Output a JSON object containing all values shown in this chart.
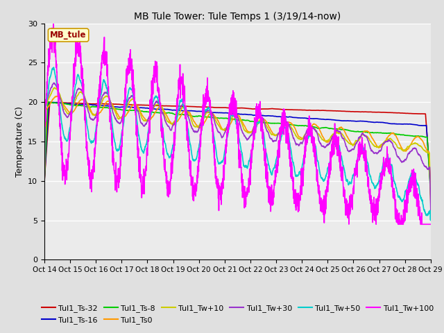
{
  "title": "MB Tule Tower: Tule Temps 1 (3/19/14-now)",
  "ylabel": "Temperature (C)",
  "xlim": [
    0,
    15
  ],
  "ylim": [
    0,
    30
  ],
  "yticks": [
    0,
    5,
    10,
    15,
    20,
    25,
    30
  ],
  "xtick_labels": [
    "Oct 14",
    "Oct 15",
    "Oct 16",
    "Oct 17",
    "Oct 18",
    "Oct 19",
    "Oct 20",
    "Oct 21",
    "Oct 22",
    "Oct 23",
    "Oct 24",
    "Oct 25",
    "Oct 26",
    "Oct 27",
    "Oct 28",
    "Oct 29"
  ],
  "legend_label": "MB_tule",
  "fig_bg": "#e0e0e0",
  "plot_bg": "#ebebeb",
  "series_colors": {
    "Tul1_Ts-32": "#cc0000",
    "Tul1_Ts-16": "#0000cc",
    "Tul1_Ts-8": "#00cc00",
    "Tul1_Ts0": "#ff9900",
    "Tul1_Tw+10": "#cccc00",
    "Tul1_Tw+30": "#9933cc",
    "Tul1_Tw+50": "#00cccc",
    "Tul1_Tw+100": "#ff00ff"
  }
}
